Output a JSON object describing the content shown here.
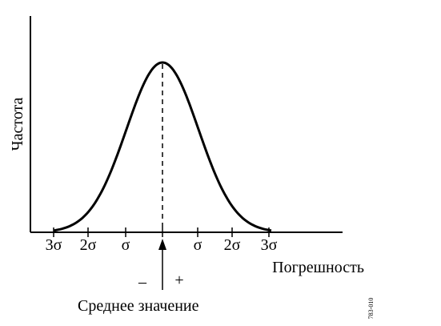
{
  "y_label": "Частота",
  "x_labels": [
    "3σ",
    "2σ",
    "σ",
    "σ",
    "2σ",
    "3σ"
  ],
  "x_title": "Погрешность",
  "minus": "–",
  "plus": "+",
  "mean_label": "Среднее значение",
  "code": "783-010"
}
